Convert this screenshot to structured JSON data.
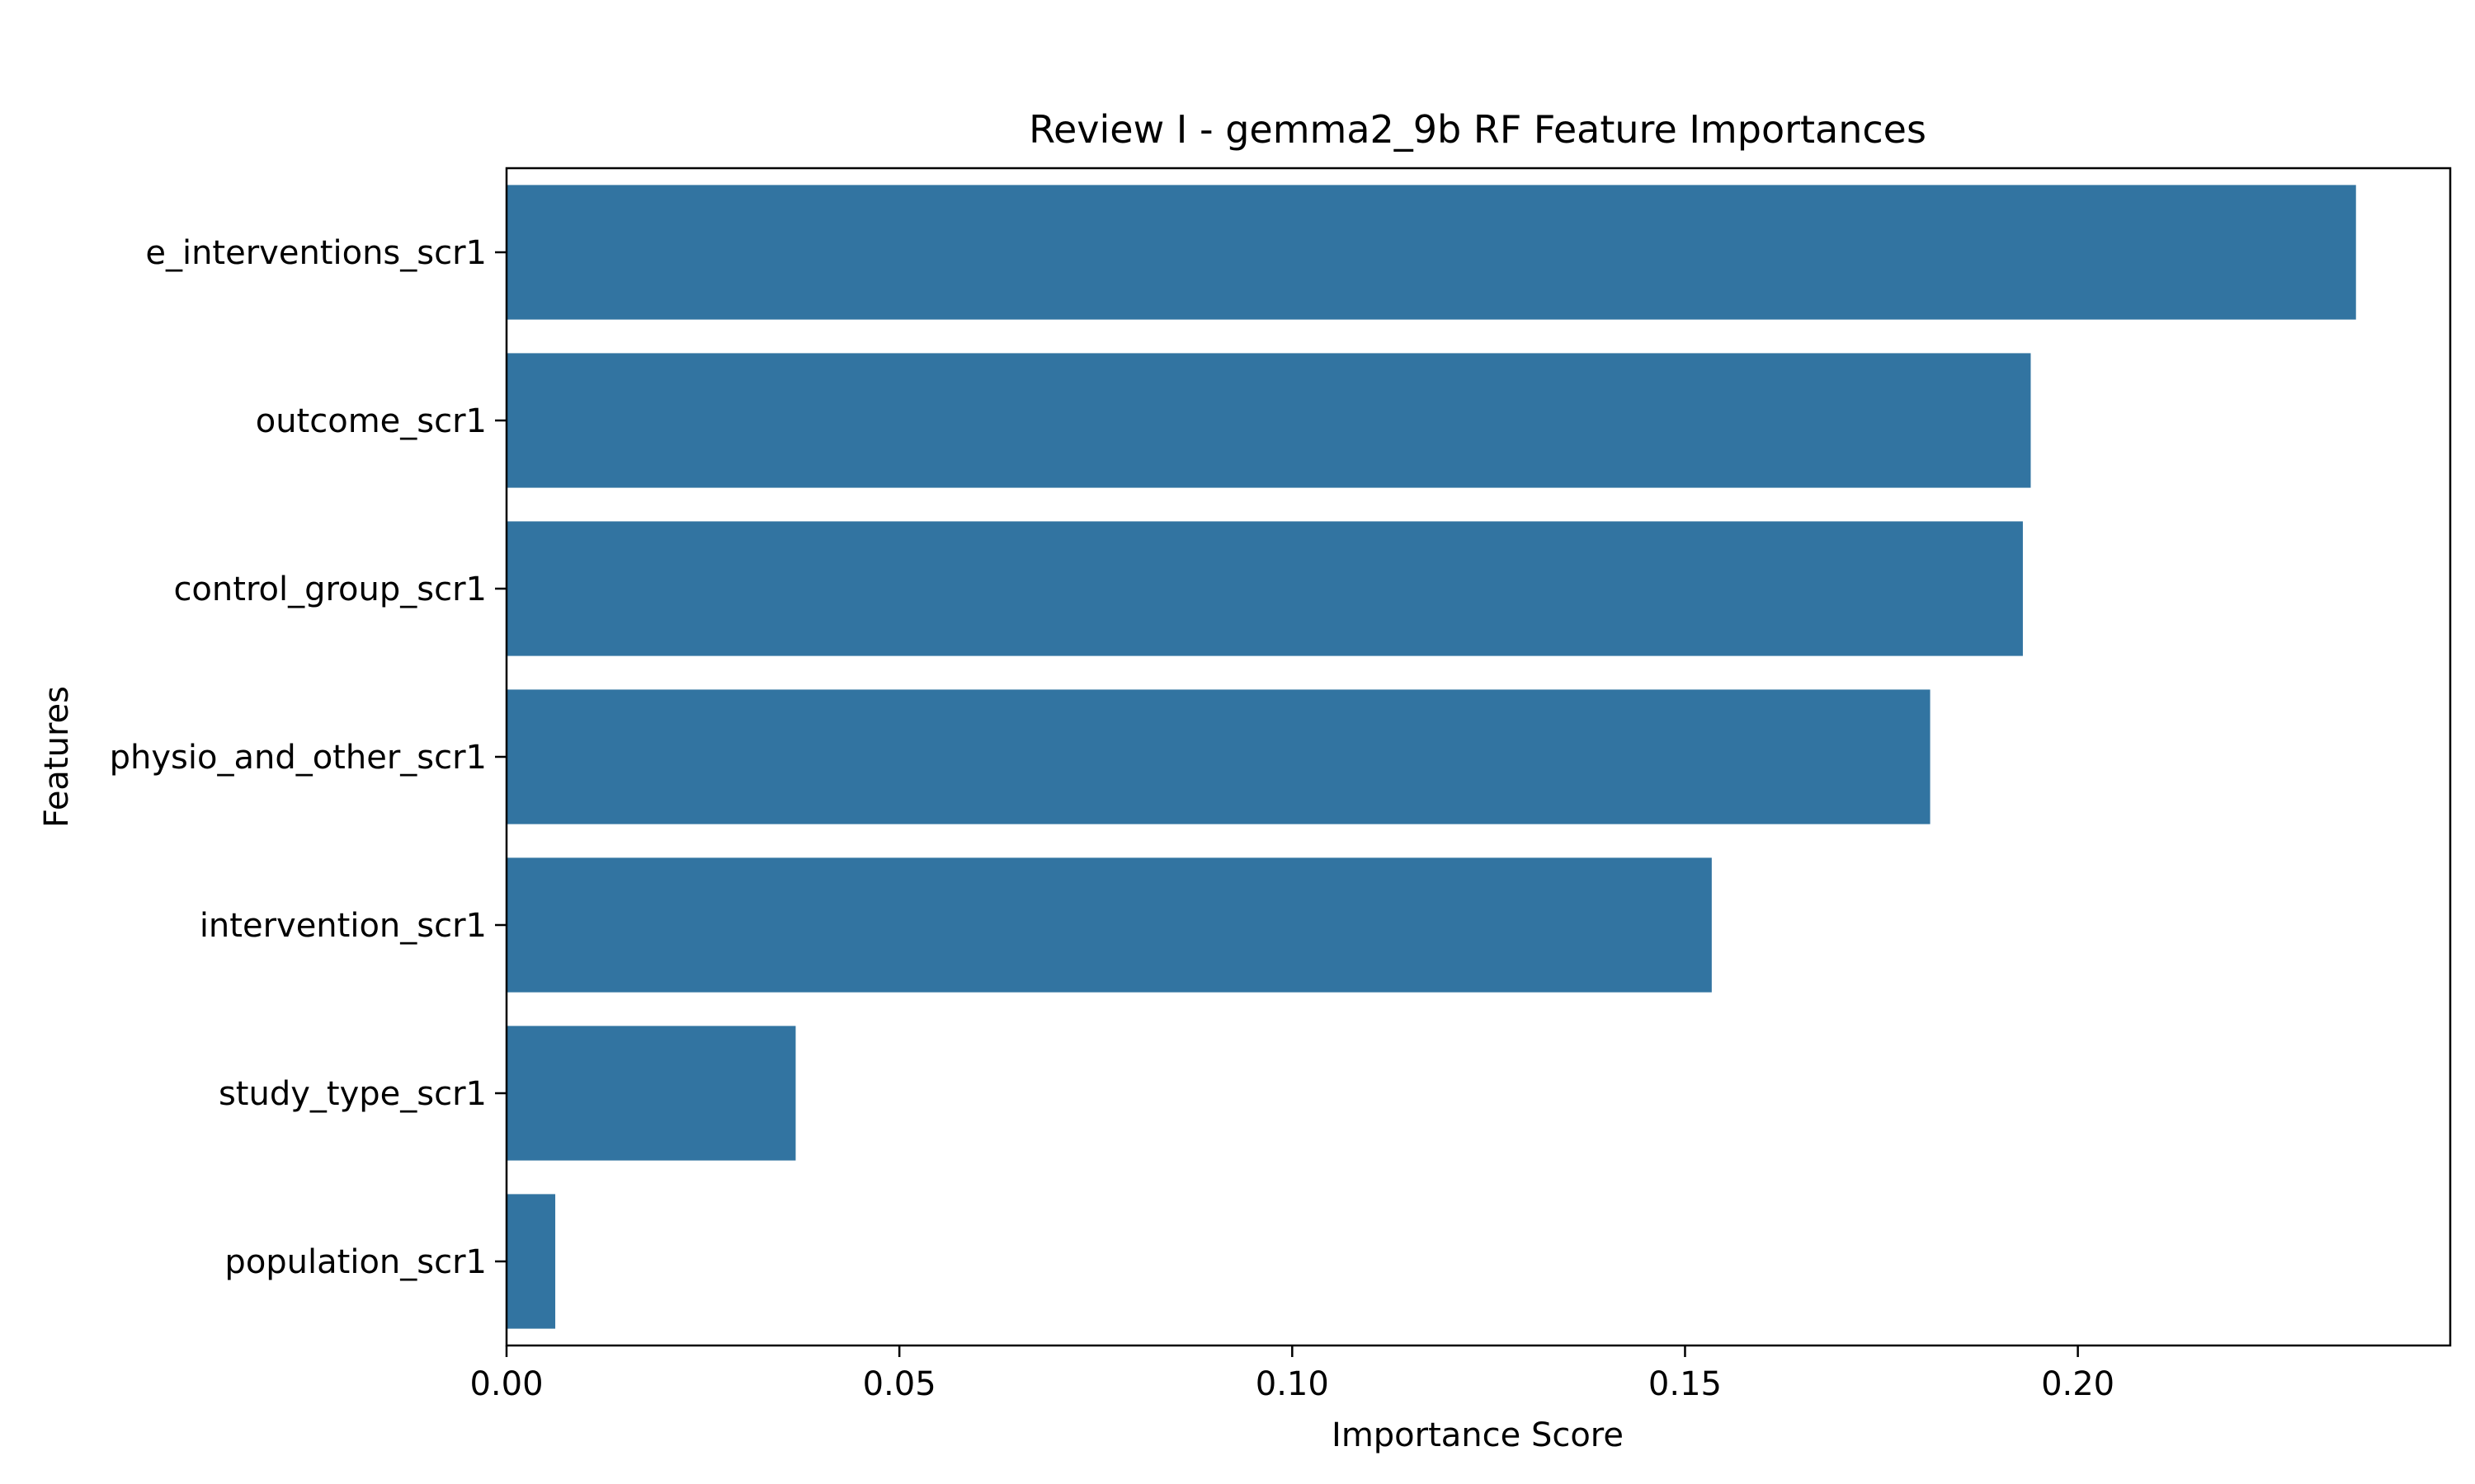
{
  "chart_data": {
    "type": "bar",
    "orientation": "horizontal",
    "title": "Review I - gemma2_9b RF Feature Importances",
    "xlabel": "Importance Score",
    "ylabel": "Features",
    "categories": [
      "e_interventions_scr1",
      "outcome_scr1",
      "control_group_scr1",
      "physio_and_other_scr1",
      "intervention_scr1",
      "study_type_scr1",
      "population_scr1"
    ],
    "values": [
      0.2354,
      0.194,
      0.193,
      0.1812,
      0.1534,
      0.0368,
      0.0062
    ],
    "xlim": [
      0,
      0.2474
    ],
    "xticks": [
      0.0,
      0.05,
      0.1,
      0.15,
      0.2
    ],
    "xtick_labels": [
      "0.00",
      "0.05",
      "0.10",
      "0.15",
      "0.20"
    ],
    "bar_color": "#3274a1",
    "grid": false,
    "legend": "none"
  }
}
